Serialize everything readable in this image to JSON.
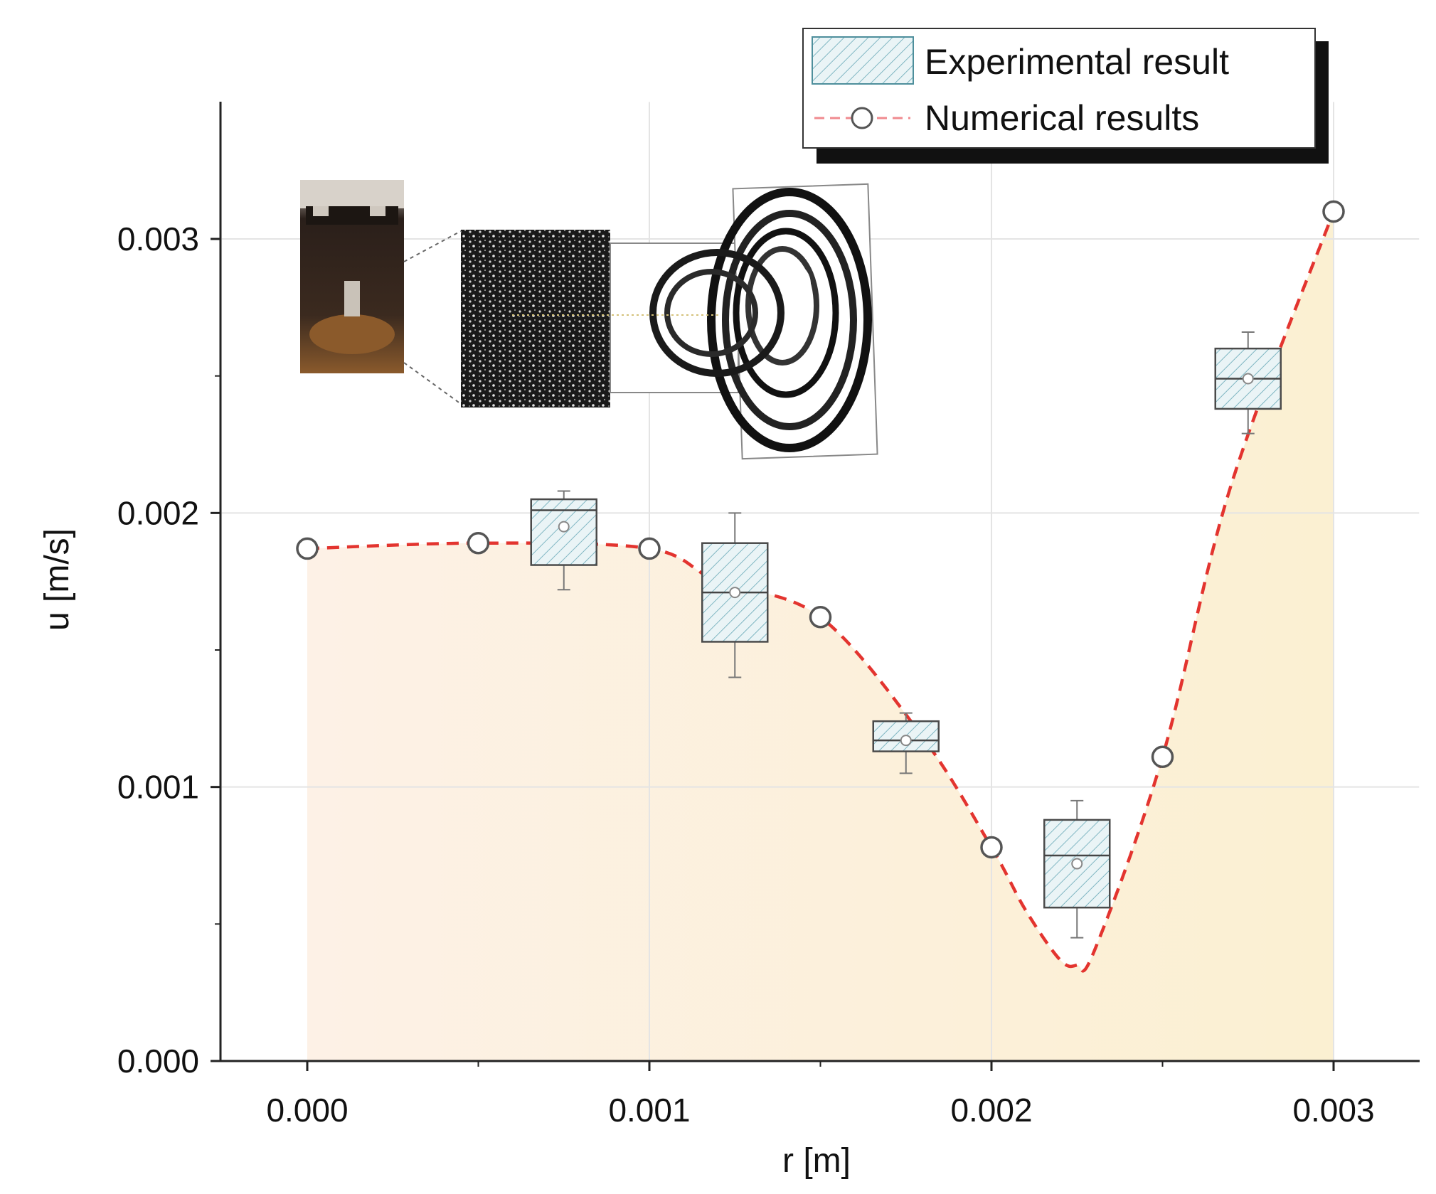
{
  "chart_data": {
    "type": "box-and-line",
    "xlabel": "r [m]",
    "ylabel": "u [m/s]",
    "xlim": [
      -0.00025,
      0.00325
    ],
    "ylim": [
      0.0,
      0.0035
    ],
    "x_ticks": [
      "0.000",
      "0.001",
      "0.002",
      "0.003"
    ],
    "x_tick_values": [
      0.0,
      0.001,
      0.002,
      0.003
    ],
    "y_ticks": [
      "0.000",
      "0.001",
      "0.002",
      "0.003"
    ],
    "y_tick_values": [
      0.0,
      0.001,
      0.002,
      0.003
    ],
    "grid": true,
    "legend": {
      "position": "top-right",
      "entries": [
        "Experimental result",
        "Numerical results"
      ]
    },
    "series": [
      {
        "name": "Numerical results",
        "kind": "line-markers",
        "style": "dashed",
        "color": "#e3342f",
        "markers": [
          {
            "x": 0.0,
            "y": 0.00187
          },
          {
            "x": 0.0005,
            "y": 0.00189
          },
          {
            "x": 0.001,
            "y": 0.00187
          },
          {
            "x": 0.0015,
            "y": 0.00162
          },
          {
            "x": 0.002,
            "y": 0.00078
          },
          {
            "x": 0.0025,
            "y": 0.00111
          },
          {
            "x": 0.003,
            "y": 0.0031
          }
        ],
        "curve": [
          {
            "x": 0.0,
            "y": 0.00187
          },
          {
            "x": 0.0005,
            "y": 0.00189
          },
          {
            "x": 0.001,
            "y": 0.00187
          },
          {
            "x": 0.0012,
            "y": 0.00175
          },
          {
            "x": 0.0015,
            "y": 0.00162
          },
          {
            "x": 0.0018,
            "y": 0.00118
          },
          {
            "x": 0.002,
            "y": 0.00078
          },
          {
            "x": 0.0021,
            "y": 0.00055
          },
          {
            "x": 0.0022,
            "y": 0.00037
          },
          {
            "x": 0.00225,
            "y": 0.00035
          },
          {
            "x": 0.0023,
            "y": 0.0004
          },
          {
            "x": 0.0025,
            "y": 0.00111
          },
          {
            "x": 0.0027,
            "y": 0.0021
          },
          {
            "x": 0.003,
            "y": 0.0031
          }
        ]
      },
      {
        "name": "Experimental result",
        "kind": "box",
        "color": "#5aa3b0",
        "boxes": [
          {
            "x": 0.00075,
            "min": 0.00172,
            "q1": 0.00181,
            "median": 0.00201,
            "q3": 0.00205,
            "max": 0.00208,
            "mean": 0.00195
          },
          {
            "x": 0.00125,
            "min": 0.0014,
            "q1": 0.00153,
            "median": 0.00171,
            "q3": 0.00189,
            "max": 0.002,
            "mean": 0.00171
          },
          {
            "x": 0.00175,
            "min": 0.00105,
            "q1": 0.00113,
            "median": 0.00117,
            "q3": 0.00124,
            "max": 0.00127,
            "mean": 0.00117
          },
          {
            "x": 0.00225,
            "min": 0.00045,
            "q1": 0.00056,
            "median": 0.00075,
            "q3": 0.00088,
            "max": 0.00095,
            "mean": 0.00072
          },
          {
            "x": 0.00275,
            "min": 0.00229,
            "q1": 0.00238,
            "median": 0.00249,
            "q3": 0.0026,
            "max": 0.00266,
            "mean": 0.00249
          }
        ]
      }
    ]
  }
}
